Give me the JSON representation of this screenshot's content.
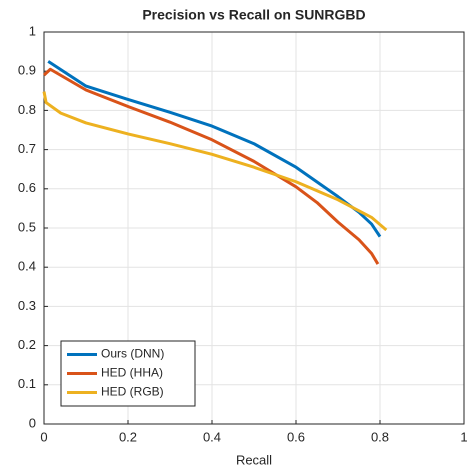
{
  "chart_data": {
    "type": "line",
    "title": "Precision vs Recall on SUNRGBD",
    "x_label": "Recall",
    "xlim": [
      0,
      1
    ],
    "ylim": [
      0,
      1
    ],
    "xticks": [
      0,
      0.2,
      0.4,
      0.6,
      0.8,
      1
    ],
    "yticks": [
      0,
      0.1,
      0.2,
      0.3,
      0.4,
      0.5,
      0.6,
      0.7,
      0.8,
      0.9,
      1
    ],
    "grid": true,
    "legend": "lower-left",
    "series": [
      {
        "name": "Ours (DNN)",
        "color": "#0072BD",
        "x": [
          0.01,
          0.1,
          0.2,
          0.3,
          0.4,
          0.5,
          0.6,
          0.7,
          0.75,
          0.78,
          0.8
        ],
        "values": [
          0.925,
          0.862,
          0.828,
          0.795,
          0.76,
          0.715,
          0.655,
          0.58,
          0.54,
          0.51,
          0.478
        ]
      },
      {
        "name": "HED (HHA)",
        "color": "#D95319",
        "x": [
          0,
          0.015,
          0.1,
          0.2,
          0.3,
          0.4,
          0.5,
          0.6,
          0.65,
          0.7,
          0.75,
          0.78,
          0.795
        ],
        "values": [
          0.89,
          0.905,
          0.852,
          0.81,
          0.77,
          0.725,
          0.67,
          0.605,
          0.565,
          0.515,
          0.47,
          0.435,
          0.408
        ]
      },
      {
        "name": "HED (RGB)",
        "color": "#EDB120",
        "x": [
          0,
          0.005,
          0.04,
          0.1,
          0.2,
          0.3,
          0.4,
          0.5,
          0.6,
          0.7,
          0.78,
          0.815
        ],
        "values": [
          0.848,
          0.82,
          0.793,
          0.768,
          0.74,
          0.715,
          0.688,
          0.655,
          0.618,
          0.572,
          0.527,
          0.495
        ]
      }
    ]
  }
}
